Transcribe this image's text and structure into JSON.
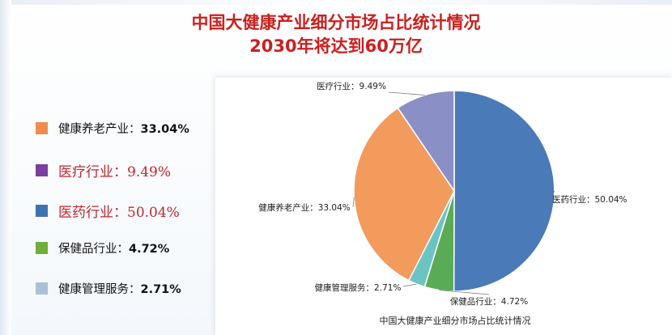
{
  "title_line1": "中国大健康产业细分市场占比统计情况",
  "title_line2": "2030年将达到60万亿",
  "legend": [
    {
      "label": "健康养老产业：",
      "value": "33.04%",
      "color": "#f08c50",
      "style": "normal"
    },
    {
      "label": "医疗行业：",
      "value": "9.49%",
      "color": "#7b3f9e",
      "style": "alt"
    },
    {
      "label": "医药行业：",
      "value": "50.04%",
      "color": "#3f73b0",
      "style": "alt"
    },
    {
      "label": "保健品行业：",
      "value": "4.72%",
      "color": "#6fae3c",
      "style": "normal"
    },
    {
      "label": "健康管理服务：",
      "value": "2.71%",
      "color": "#aebfd8",
      "style": "normal"
    }
  ],
  "chart_data": {
    "type": "pie",
    "title": "中国大健康产业细分市场占比统计情况",
    "slices": [
      {
        "name": "医药行业",
        "value": 50.04,
        "label": "医药行业：50.04%",
        "color": "#4a7ab8"
      },
      {
        "name": "保健品行业",
        "value": 4.72,
        "label": "保健品行业：4.72%",
        "color": "#5aab55"
      },
      {
        "name": "健康管理服务",
        "value": 2.71,
        "label": "健康管理服务：2.71%",
        "color": "#6cc4c2"
      },
      {
        "name": "健康养老产业",
        "value": 33.04,
        "label": "健康养老产业：33.04%",
        "color": "#f39a5d"
      },
      {
        "name": "医疗行业",
        "value": 9.49,
        "label": "医疗行业：9.49%",
        "color": "#8a8fc5"
      }
    ],
    "start": "12 o'clock",
    "direction": "clockwise"
  }
}
